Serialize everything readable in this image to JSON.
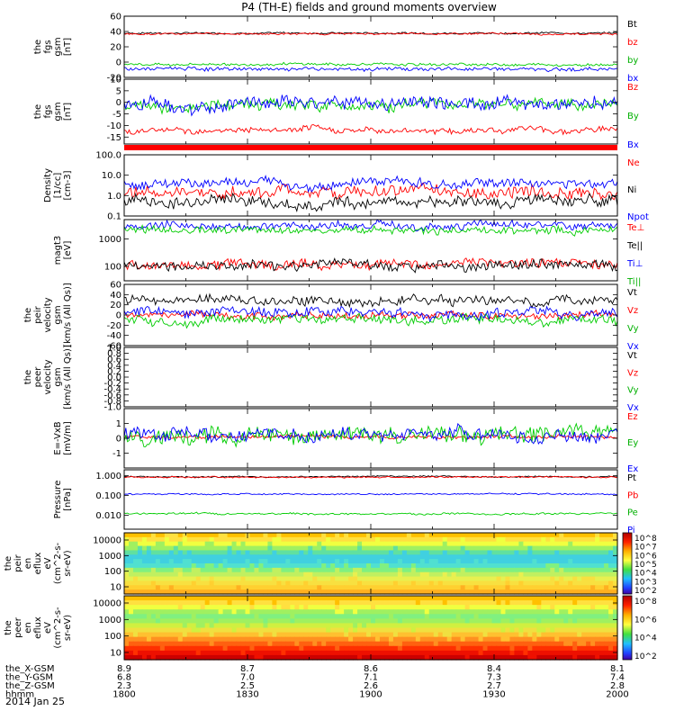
{
  "chart_data": {
    "type": "line",
    "title": "P4 (TH-E) fields and ground moments overview",
    "date": "2014 Jan 25",
    "x_range": [
      "1800",
      "2000"
    ],
    "x_ticks": [
      "1800",
      "1830",
      "1900",
      "1930",
      "2000"
    ],
    "ephemeris": {
      "rows": [
        {
          "label": "the_X-GSM",
          "values": [
            "8.9",
            "8.7",
            "8.6",
            "8.4",
            "8.1"
          ]
        },
        {
          "label": "the_Y-GSM",
          "values": [
            "6.8",
            "7.0",
            "7.1",
            "7.3",
            "7.4"
          ]
        },
        {
          "label": "the_Z-GSM",
          "values": [
            "2.3",
            "2.5",
            "2.6",
            "2.7",
            "2.8"
          ]
        },
        {
          "label": "hhmm",
          "values": [
            "1800",
            "1830",
            "1900",
            "1930",
            "2000"
          ]
        }
      ]
    },
    "panels": [
      {
        "id": "fgs-gsm-1",
        "ylabel": [
          "the",
          "fgs",
          "gsm",
          "[nT]"
        ],
        "ylim": [
          -20,
          60
        ],
        "yticks": [
          "60",
          "40",
          "20",
          "0",
          "-20"
        ],
        "series": [
          {
            "name": "Bt",
            "color": "#000000",
            "base": 38,
            "noise": 1.0
          },
          {
            "name": "bz",
            "color": "#ff0000",
            "base": 37,
            "noise": 1.0
          },
          {
            "name": "by",
            "color": "#00cc00",
            "base": -3,
            "noise": 1.5
          },
          {
            "name": "bx",
            "color": "#0000ff",
            "base": -9,
            "noise": 2.0
          }
        ]
      },
      {
        "id": "fgs-gsm-2",
        "ylabel": [
          "the",
          "fgs",
          "gsm",
          "[nT]"
        ],
        "ylim": [
          -18,
          10
        ],
        "yticks": [
          "10",
          "5",
          "0",
          "-5",
          "-10",
          "-15"
        ],
        "series": [
          {
            "name": "Bz",
            "color": "#ff0000",
            "base": -12,
            "noise": 1.2
          },
          {
            "name": "By",
            "color": "#00cc00",
            "base": -1,
            "noise": 2.0
          },
          {
            "name": "Bx",
            "color": "#0000ff",
            "base": 0,
            "noise": 2.5
          }
        ]
      },
      {
        "id": "density",
        "ylabel": [
          "Density",
          "[1/cc]",
          "[cm-3]"
        ],
        "ylim": [
          0.1,
          100
        ],
        "log": true,
        "yticks": [
          "100.0",
          "10.0",
          "1.0",
          "0.1"
        ],
        "series": [
          {
            "name": "Ne",
            "color": "#ff0000",
            "base": 1.5,
            "noise": 0.25
          },
          {
            "name": "Ni",
            "color": "#000000",
            "base": 0.5,
            "noise": 0.25
          },
          {
            "name": "Npot",
            "color": "#0000ff",
            "base": 4.0,
            "noise": 0.2
          }
        ]
      },
      {
        "id": "temperature",
        "ylabel": [
          "magt3",
          "[eV]"
        ],
        "ylim": [
          30,
          5000
        ],
        "log": true,
        "yticks": [
          "1000",
          "100"
        ],
        "series": [
          {
            "name": "Te⊥",
            "color": "#ff0000",
            "base": 120,
            "noise": 0.15
          },
          {
            "name": "Te||",
            "color": "#000000",
            "base": 110,
            "noise": 0.15
          },
          {
            "name": "Ti⊥",
            "color": "#0000ff",
            "base": 3000,
            "noise": 0.12
          },
          {
            "name": "Ti||",
            "color": "#00cc00",
            "base": 2000,
            "noise": 0.12
          }
        ]
      },
      {
        "id": "peir-velocity",
        "ylabel": [
          "the",
          "peir",
          "velocity",
          "gsm",
          "[km/s (All Qs)]"
        ],
        "ylim": [
          -60,
          60
        ],
        "yticks": [
          "60",
          "40",
          "20",
          "0",
          "-20",
          "-40",
          "-60"
        ],
        "series": [
          {
            "name": "Vt",
            "color": "#000000",
            "base": 30,
            "noise": 8
          },
          {
            "name": "Vz",
            "color": "#ff0000",
            "base": 0,
            "noise": 6
          },
          {
            "name": "Vy",
            "color": "#00cc00",
            "base": -10,
            "noise": 8
          },
          {
            "name": "Vx",
            "color": "#0000ff",
            "base": 5,
            "noise": 8
          }
        ]
      },
      {
        "id": "peer-velocity",
        "ylabel": [
          "the",
          "peer",
          "velocity",
          "gsm",
          "[km/s (All Qs)]"
        ],
        "ylim": [
          -1.0,
          1.0
        ],
        "yticks": [
          "1.0",
          "0.8",
          "0.6",
          "0.4",
          "0.2",
          "0.0",
          "-0.2",
          "-0.4",
          "-0.6",
          "-0.8",
          "-1.0"
        ],
        "series": [
          {
            "name": "Vt",
            "color": "#000000"
          },
          {
            "name": "Vz",
            "color": "#ff0000"
          },
          {
            "name": "Vy",
            "color": "#00cc00"
          },
          {
            "name": "Vx",
            "color": "#0000ff"
          }
        ]
      },
      {
        "id": "efield",
        "ylabel": [
          "E=-VxB",
          "[mV/m]"
        ],
        "ylim": [
          -2,
          2
        ],
        "yticks": [
          "1",
          "0",
          "-1"
        ],
        "series": [
          {
            "name": "Ez",
            "color": "#ff0000",
            "base": 0.1,
            "noise": 0.1
          },
          {
            "name": "Ey",
            "color": "#00cc00",
            "base": 0.2,
            "noise": 0.5
          },
          {
            "name": "Ex",
            "color": "#0000ff",
            "base": 0.3,
            "noise": 0.4
          }
        ]
      },
      {
        "id": "pressure",
        "ylabel": [
          "Pressure",
          "[nPa]"
        ],
        "ylim": [
          0.002,
          2.0
        ],
        "log": true,
        "yticks": [
          "1.000",
          "0.100",
          "0.010"
        ],
        "series": [
          {
            "name": "Pt",
            "color": "#000000",
            "base": 0.9,
            "noise": 0.03
          },
          {
            "name": "Pb",
            "color": "#ff0000",
            "base": 0.85,
            "noise": 0.03
          },
          {
            "name": "Pe",
            "color": "#00cc00",
            "base": 0.012,
            "noise": 0.04
          },
          {
            "name": "Pi",
            "color": "#0000ff",
            "base": 0.12,
            "noise": 0.03
          }
        ]
      },
      {
        "id": "peir-en-eflux",
        "type": "heatmap",
        "ylabel": [
          "the",
          "peir",
          "en",
          "eflux",
          "eV",
          "(cm^2-s-",
          "sr-eV)"
        ],
        "yticks": [
          "10000",
          "1000",
          "100",
          "10"
        ],
        "colorbar": [
          "10^8",
          "10^7",
          "10^6",
          "10^5",
          "10^4",
          "10^3",
          "10^2"
        ]
      },
      {
        "id": "peer-en-eflux",
        "type": "heatmap",
        "ylabel": [
          "the",
          "peer",
          "en",
          "eflux",
          "eV",
          "(cm^2-s-",
          "sr-eV)"
        ],
        "yticks": [
          "10000",
          "1000",
          "100",
          "10"
        ],
        "colorbar": [
          "10^8",
          "10^6",
          "10^4",
          "10^2"
        ]
      }
    ]
  }
}
